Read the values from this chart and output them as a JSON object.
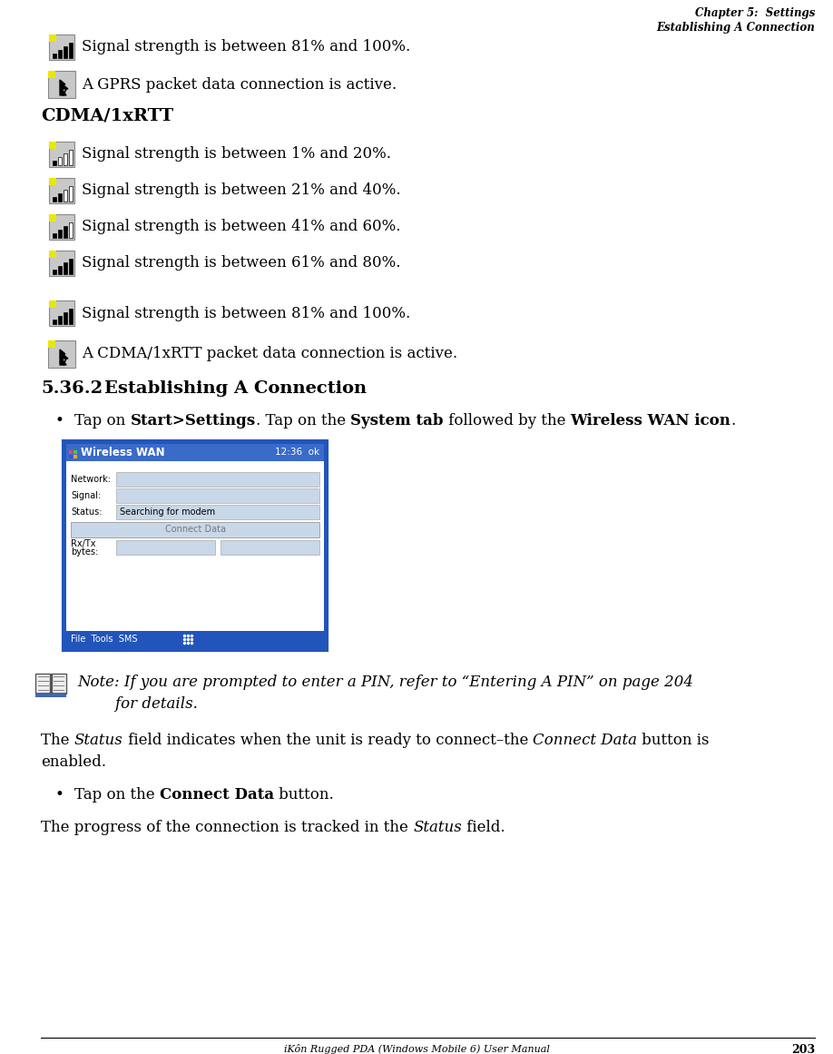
{
  "bg_color": "#ffffff",
  "header_right_line1": "Chapter 5:  Settings",
  "header_right_line2": "Establishing A Connection",
  "footer_center": "iKôn Rugged PDA (Windows Mobile 6) User Manual",
  "footer_page": "203",
  "section_heading_num": "5.36.2",
  "section_heading_title": "Establishing A Connection",
  "gprs_items": [
    "Signal strength is between 81% and 100%.",
    "A GPRS packet data connection is active."
  ],
  "cdma_heading": "CDMA/1xRTT",
  "cdma_items": [
    "Signal strength is between 1% and 20%.",
    "Signal strength is between 21% and 40%.",
    "Signal strength is between 41% and 60%.",
    "Signal strength is between 61% and 80%.",
    "Signal strength is between 81% and 100%.",
    "A CDMA/1xRTT packet data connection is active."
  ],
  "screen_title": "Wireless WAN",
  "screen_time": "12:36",
  "screen_status_val": "Searching for modem",
  "screen_connect_btn": "Connect Data",
  "screen_menu": "File  Tools  SMS",
  "note_line1": "Note: If you are prompted to enter a PIN, refer to “Entering A PIN” on page 204",
  "note_line2": "        for details.",
  "status_text1a": "The ",
  "status_text1b": "Status",
  "status_text1c": " field indicates when the unit is ready to connect–the ",
  "status_text1d": "Connect Data",
  "status_text1e": " button is",
  "status_text1f": "enabled.",
  "bullet1_pre": "Tap on ",
  "bullet1_b1": "Start>Settings",
  "bullet1_mid": ". Tap on the ",
  "bullet1_b2": "System tab",
  "bullet1_mid2": " followed by the ",
  "bullet1_b3": "Wireless WAN icon",
  "bullet1_end": ".",
  "bullet2_pre": "Tap on the ",
  "bullet2_b1": "Connect Data",
  "bullet2_end": " button.",
  "status2_pre": "The progress of the connection is tracked in the ",
  "status2_it": "Status",
  "status2_end": " field.",
  "icon_bg_color": "#c8c8c8",
  "icon_yellow": "#e8e800",
  "screen_border_color": "#2255bb",
  "screen_title_bg": "#3a6bc8",
  "screen_content_bg": "#ffffff",
  "screen_field_bg": "#c8d8e8",
  "screen_status_bg": "#c8d8e8",
  "screen_btn_bg": "#c8d8e8",
  "screen_menu_bg": "#2255bb",
  "screen_menu_text_color": "#ffffff"
}
